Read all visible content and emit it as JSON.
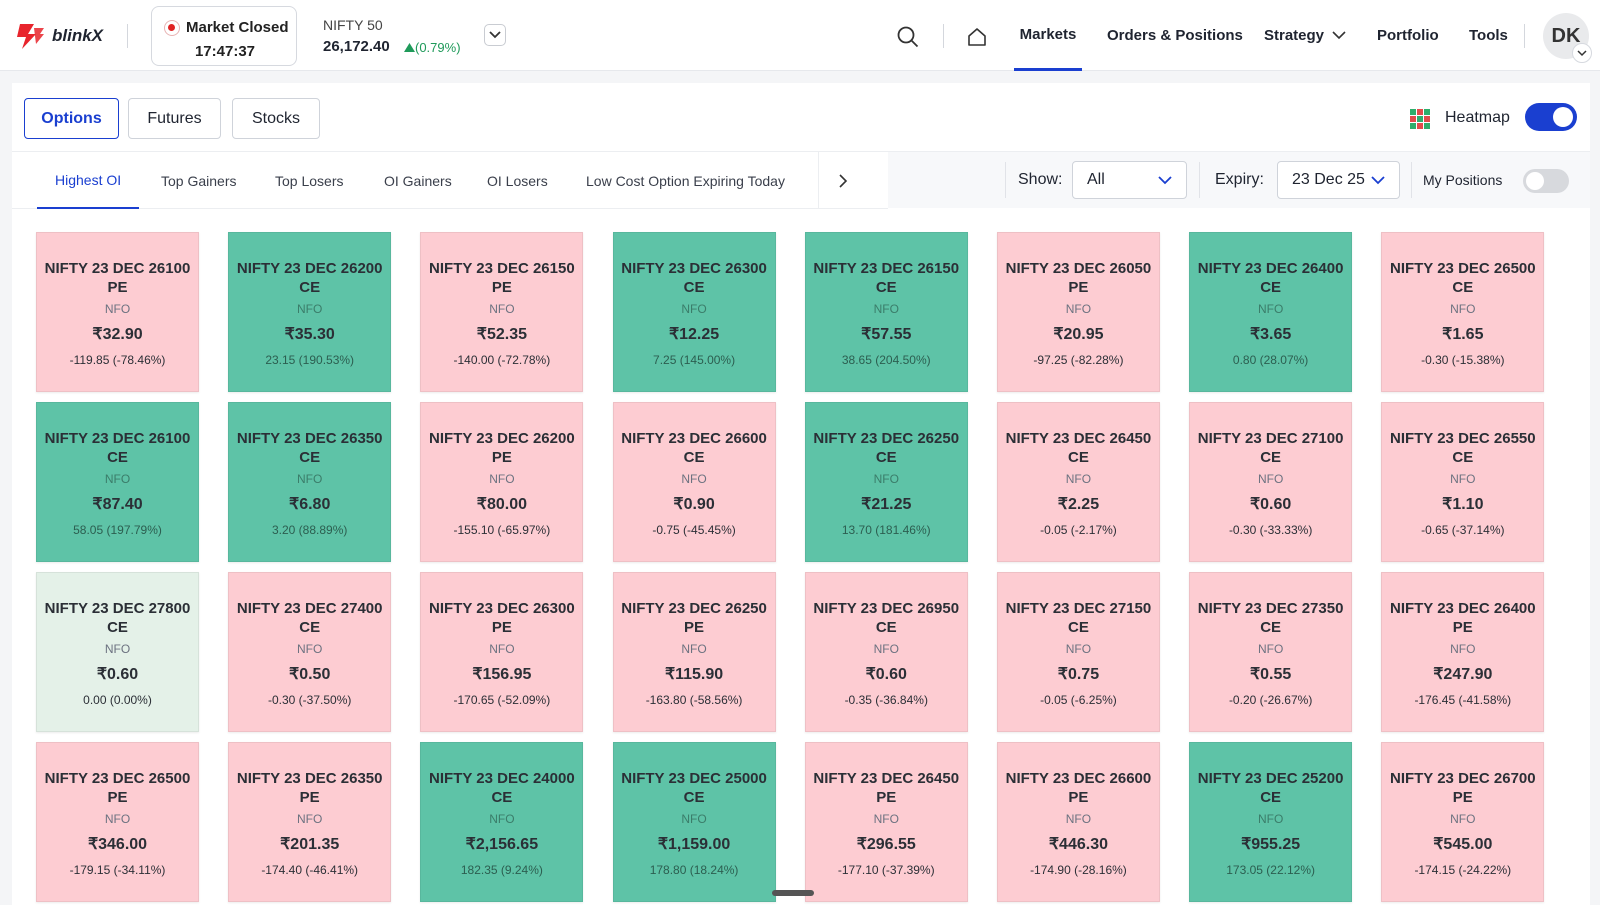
{
  "app": {
    "brand": "blinkX"
  },
  "market": {
    "status": "Market Closed",
    "time": "17:47:37"
  },
  "index": {
    "name": "NIFTY 50",
    "value": "26,172.40",
    "change": "(0.79%)"
  },
  "nav": {
    "markets": "Markets",
    "orders": "Orders & Positions",
    "strategy": "Strategy",
    "portfolio": "Portfolio",
    "tools": "Tools"
  },
  "user": {
    "initials": "DK"
  },
  "segments": {
    "options": "Options",
    "futures": "Futures",
    "stocks": "Stocks"
  },
  "heatmap": {
    "label": "Heatmap",
    "enabled": true
  },
  "tabs": [
    "Highest OI",
    "Top Gainers",
    "Top Losers",
    "OI Gainers",
    "OI Losers",
    "Low Cost Option Expiring Today"
  ],
  "filters": {
    "show_label": "Show:",
    "show_value": "All",
    "expiry_label": "Expiry:",
    "expiry_value": "23 Dec 25",
    "my_positions_label": "My Positions"
  },
  "colors": {
    "accent": "#1a3fd0",
    "positive": "#5ec3a7",
    "negative": "#fdccd2",
    "neutral": "#e4f1e8"
  },
  "cards": [
    {
      "name": "NIFTY 23 DEC 26100 PE",
      "exchange": "NFO",
      "price": "₹32.90",
      "change": "-119.85 (-78.46%)",
      "trend": "neg"
    },
    {
      "name": "NIFTY 23 DEC 26200 CE",
      "exchange": "NFO",
      "price": "₹35.30",
      "change": "23.15 (190.53%)",
      "trend": "pos"
    },
    {
      "name": "NIFTY 23 DEC 26150 PE",
      "exchange": "NFO",
      "price": "₹52.35",
      "change": "-140.00 (-72.78%)",
      "trend": "neg"
    },
    {
      "name": "NIFTY 23 DEC 26300 CE",
      "exchange": "NFO",
      "price": "₹12.25",
      "change": "7.25 (145.00%)",
      "trend": "pos"
    },
    {
      "name": "NIFTY 23 DEC 26150 CE",
      "exchange": "NFO",
      "price": "₹57.55",
      "change": "38.65 (204.50%)",
      "trend": "pos"
    },
    {
      "name": "NIFTY 23 DEC 26050 PE",
      "exchange": "NFO",
      "price": "₹20.95",
      "change": "-97.25 (-82.28%)",
      "trend": "neg"
    },
    {
      "name": "NIFTY 23 DEC 26400 CE",
      "exchange": "NFO",
      "price": "₹3.65",
      "change": "0.80 (28.07%)",
      "trend": "pos"
    },
    {
      "name": "NIFTY 23 DEC 26500 CE",
      "exchange": "NFO",
      "price": "₹1.65",
      "change": "-0.30 (-15.38%)",
      "trend": "neg"
    },
    {
      "name": "NIFTY 23 DEC 26100 CE",
      "exchange": "NFO",
      "price": "₹87.40",
      "change": "58.05 (197.79%)",
      "trend": "pos"
    },
    {
      "name": "NIFTY 23 DEC 26350 CE",
      "exchange": "NFO",
      "price": "₹6.80",
      "change": "3.20 (88.89%)",
      "trend": "pos"
    },
    {
      "name": "NIFTY 23 DEC 26200 PE",
      "exchange": "NFO",
      "price": "₹80.00",
      "change": "-155.10 (-65.97%)",
      "trend": "neg"
    },
    {
      "name": "NIFTY 23 DEC 26600 CE",
      "exchange": "NFO",
      "price": "₹0.90",
      "change": "-0.75 (-45.45%)",
      "trend": "neg"
    },
    {
      "name": "NIFTY 23 DEC 26250 CE",
      "exchange": "NFO",
      "price": "₹21.25",
      "change": "13.70 (181.46%)",
      "trend": "pos"
    },
    {
      "name": "NIFTY 23 DEC 26450 CE",
      "exchange": "NFO",
      "price": "₹2.25",
      "change": "-0.05 (-2.17%)",
      "trend": "neg"
    },
    {
      "name": "NIFTY 23 DEC 27100 CE",
      "exchange": "NFO",
      "price": "₹0.60",
      "change": "-0.30 (-33.33%)",
      "trend": "neg"
    },
    {
      "name": "NIFTY 23 DEC 26550 CE",
      "exchange": "NFO",
      "price": "₹1.10",
      "change": "-0.65 (-37.14%)",
      "trend": "neg"
    },
    {
      "name": "NIFTY 23 DEC 27800 CE",
      "exchange": "NFO",
      "price": "₹0.60",
      "change": "0.00 (0.00%)",
      "trend": "flat"
    },
    {
      "name": "NIFTY 23 DEC 27400 CE",
      "exchange": "NFO",
      "price": "₹0.50",
      "change": "-0.30 (-37.50%)",
      "trend": "neg"
    },
    {
      "name": "NIFTY 23 DEC 26300 PE",
      "exchange": "NFO",
      "price": "₹156.95",
      "change": "-170.65 (-52.09%)",
      "trend": "neg"
    },
    {
      "name": "NIFTY 23 DEC 26250 PE",
      "exchange": "NFO",
      "price": "₹115.90",
      "change": "-163.80 (-58.56%)",
      "trend": "neg"
    },
    {
      "name": "NIFTY 23 DEC 26950 CE",
      "exchange": "NFO",
      "price": "₹0.60",
      "change": "-0.35 (-36.84%)",
      "trend": "neg"
    },
    {
      "name": "NIFTY 23 DEC 27150 CE",
      "exchange": "NFO",
      "price": "₹0.75",
      "change": "-0.05 (-6.25%)",
      "trend": "neg"
    },
    {
      "name": "NIFTY 23 DEC 27350 CE",
      "exchange": "NFO",
      "price": "₹0.55",
      "change": "-0.20 (-26.67%)",
      "trend": "neg"
    },
    {
      "name": "NIFTY 23 DEC 26400 PE",
      "exchange": "NFO",
      "price": "₹247.90",
      "change": "-176.45 (-41.58%)",
      "trend": "neg"
    },
    {
      "name": "NIFTY 23 DEC 26500 PE",
      "exchange": "NFO",
      "price": "₹346.00",
      "change": "-179.15 (-34.11%)",
      "trend": "neg"
    },
    {
      "name": "NIFTY 23 DEC 26350 PE",
      "exchange": "NFO",
      "price": "₹201.35",
      "change": "-174.40 (-46.41%)",
      "trend": "neg"
    },
    {
      "name": "NIFTY 23 DEC 24000 CE",
      "exchange": "NFO",
      "price": "₹2,156.65",
      "change": "182.35 (9.24%)",
      "trend": "pos"
    },
    {
      "name": "NIFTY 23 DEC 25000 CE",
      "exchange": "NFO",
      "price": "₹1,159.00",
      "change": "178.80 (18.24%)",
      "trend": "pos"
    },
    {
      "name": "NIFTY 23 DEC 26450 PE",
      "exchange": "NFO",
      "price": "₹296.55",
      "change": "-177.10 (-37.39%)",
      "trend": "neg"
    },
    {
      "name": "NIFTY 23 DEC 26600 PE",
      "exchange": "NFO",
      "price": "₹446.30",
      "change": "-174.90 (-28.16%)",
      "trend": "neg"
    },
    {
      "name": "NIFTY 23 DEC 25200 CE",
      "exchange": "NFO",
      "price": "₹955.25",
      "change": "173.05 (22.12%)",
      "trend": "pos"
    },
    {
      "name": "NIFTY 23 DEC 26700 PE",
      "exchange": "NFO",
      "price": "₹545.00",
      "change": "-174.15 (-24.22%)",
      "trend": "neg"
    }
  ]
}
